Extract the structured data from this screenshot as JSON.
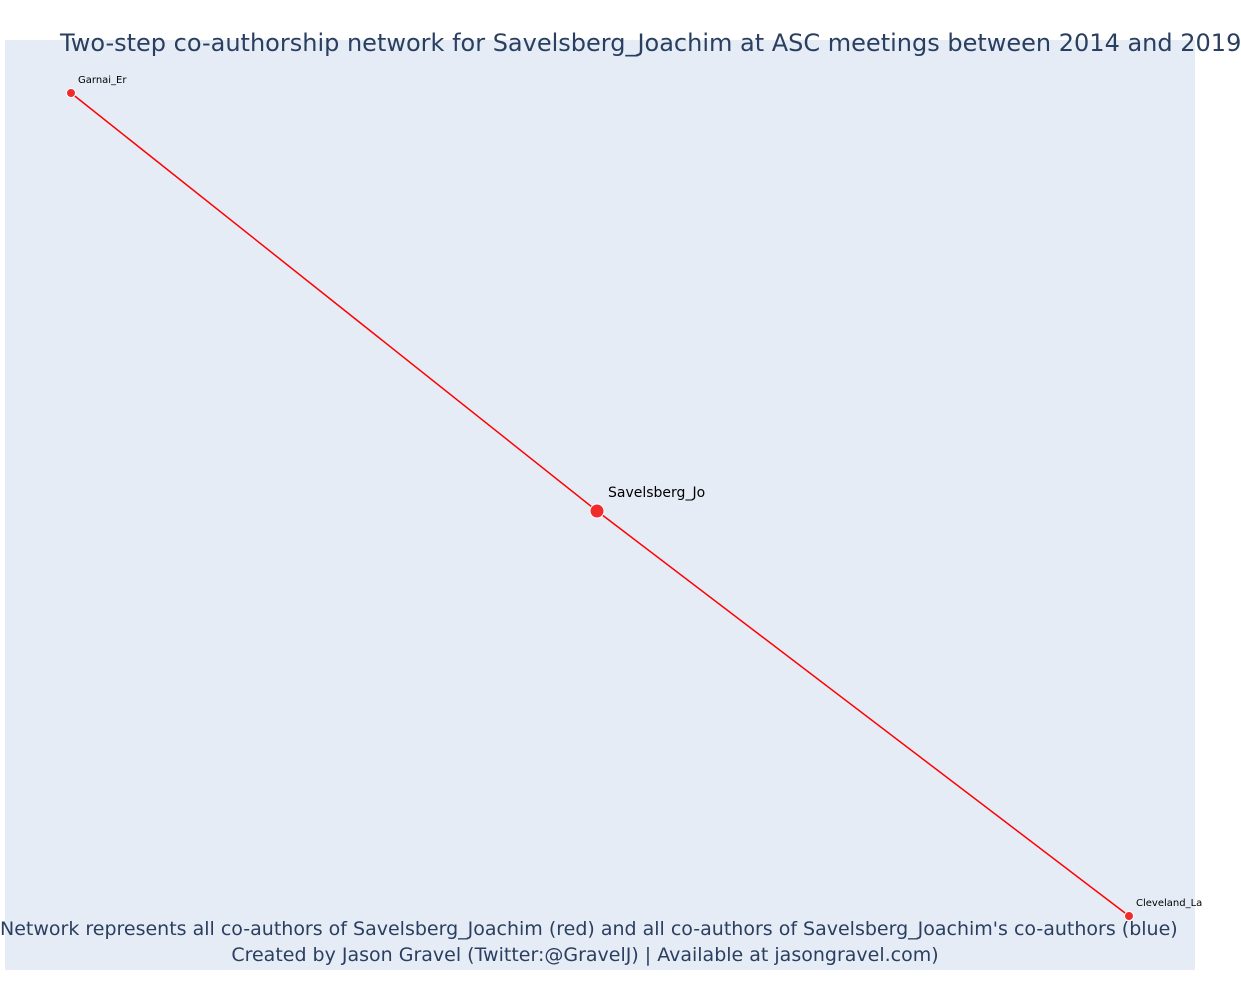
{
  "title": "Two-step co-authorship network for Savelsberg_Joachim at ASC meetings between 2014 and 2019",
  "captions": {
    "line1": "Network represents all co-authors of Savelsberg_Joachim (red) and all co-authors of Savelsberg_Joachim's co-authors (blue)",
    "line2": "Created by Jason Gravel (Twitter:@GravelJ) | Available at jasongravel.com)"
  },
  "colors": {
    "plot_background": "#e5ecf6",
    "edge": "#ff0000",
    "node": "#ef2b2b",
    "node_outline": "#ffffff",
    "text": "#2a3f5f"
  },
  "network": {
    "nodes": [
      {
        "id": "savelsberg",
        "label": "Savelsberg_Jo",
        "role": "focal"
      },
      {
        "id": "garnai",
        "label": "Garnai_Er",
        "role": "co-author"
      },
      {
        "id": "cleveland",
        "label": "Cleveland_La",
        "role": "co-author"
      }
    ],
    "edges": [
      {
        "source": "savelsberg",
        "target": "garnai"
      },
      {
        "source": "savelsberg",
        "target": "cleveland"
      }
    ]
  }
}
